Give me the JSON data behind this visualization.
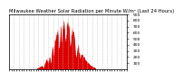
{
  "title": "Milwaukee Weather Solar Radiation per Minute W/m² (Last 24 Hours)",
  "background_color": "#ffffff",
  "plot_bg_color": "#ffffff",
  "bar_color": "#dd0000",
  "grid_color": "#bbbbbb",
  "ylim": [
    0,
    900
  ],
  "yticks": [
    100,
    200,
    300,
    400,
    500,
    600,
    700,
    800,
    900
  ],
  "num_points": 1440,
  "title_fontsize": 3.8,
  "tick_fontsize": 3.2
}
